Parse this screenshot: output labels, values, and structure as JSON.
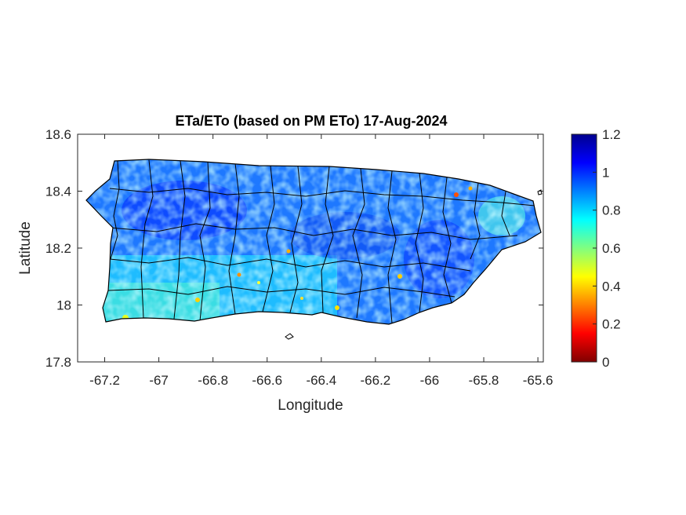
{
  "title": "ETa/ETo (based on PM ETo) 17-Aug-2024",
  "xlabel": "Longitude",
  "ylabel": "Latitude",
  "x_ticks": [
    "-67.2",
    "-67",
    "-66.8",
    "-66.6",
    "-66.4",
    "-66.2",
    "-66",
    "-65.8",
    "-65.6"
  ],
  "y_ticks": [
    "18.6",
    "18.4",
    "18.2",
    "18",
    "17.8"
  ],
  "colorbar": {
    "ticks": [
      "1.2",
      "1",
      "0.8",
      "0.6",
      "0.4",
      "0.2",
      "0"
    ],
    "range": [
      0,
      1.2
    ],
    "colormap": "jet",
    "colors": [
      "#800000",
      "#ff0000",
      "#ff8000",
      "#ffff00",
      "#80ff80",
      "#00ffff",
      "#0080ff",
      "#0000ff",
      "#00008f"
    ]
  },
  "chart_data": {
    "type": "heatmap",
    "title": "ETa/ETo (based on PM ETo) 17-Aug-2024",
    "xlabel": "Longitude",
    "ylabel": "Latitude",
    "xlim": [
      -67.3,
      -65.58
    ],
    "ylim": [
      17.8,
      18.6
    ],
    "x_ticks": [
      -67.2,
      -67,
      -66.8,
      -66.6,
      -66.4,
      -66.2,
      -66,
      -65.8,
      -65.6
    ],
    "y_ticks": [
      18.6,
      18.4,
      18.2,
      18,
      17.8
    ],
    "color_range": [
      0,
      1.2
    ],
    "colormap": "jet",
    "grid": false,
    "typical_value": 0.8
  }
}
